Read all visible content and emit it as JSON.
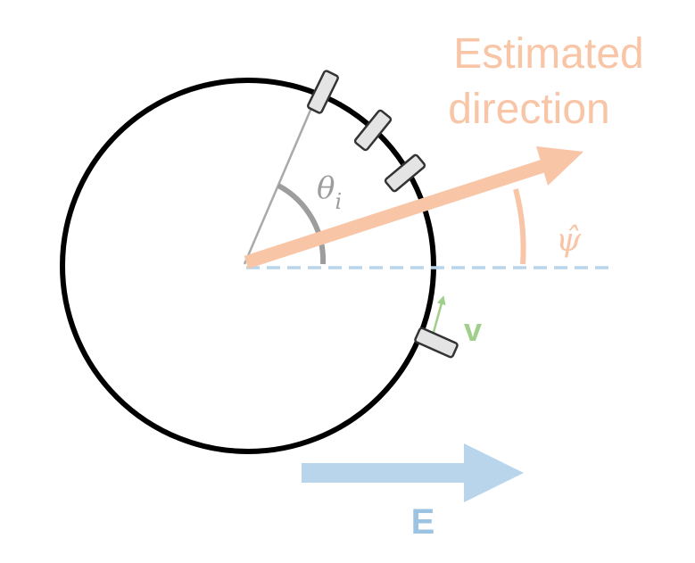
{
  "labels": {
    "estimated_line1": "Estimated",
    "estimated_line2": "direction",
    "theta": "θ",
    "theta_sub": "i",
    "psi_hat": "ψ̂",
    "velocity": "v",
    "field": "E"
  },
  "colors": {
    "circle": "#000000",
    "estimated": "#f8c5a6",
    "field": "#b8d5ec",
    "velocity": "#9fcf8a",
    "theta": "#999999",
    "sensor_fill": "#e4e4e4",
    "sensor_stroke": "#333333"
  }
}
